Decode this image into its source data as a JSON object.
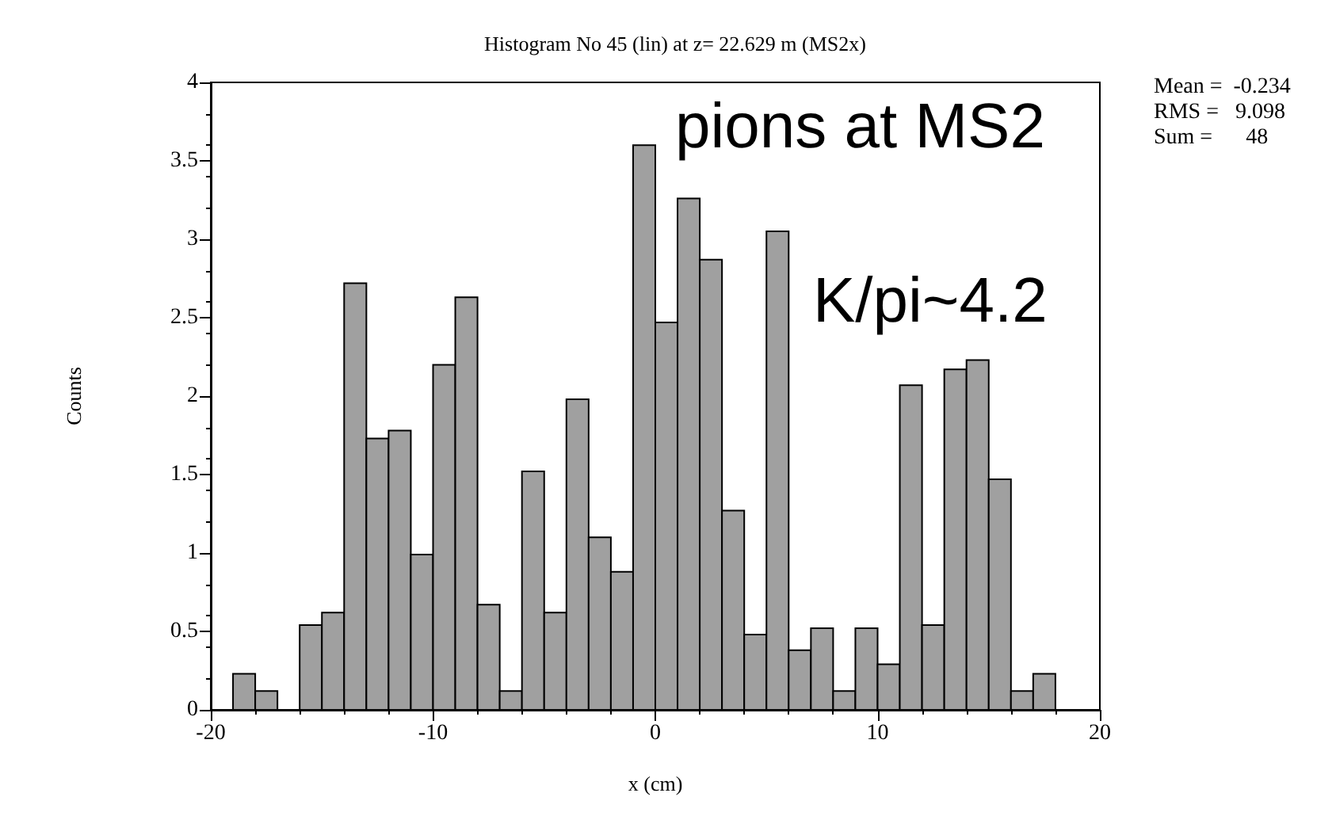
{
  "chart_data": {
    "type": "histogram",
    "title": "Histogram No 45 (lin) at z= 22.629 m (MS2x)",
    "xlabel": "x (cm)",
    "ylabel": "Counts",
    "bins": [
      -19,
      -18,
      -17,
      -16,
      -15,
      -14,
      -13,
      -12,
      -11,
      -10,
      -9,
      -8,
      -7,
      -6,
      -5,
      -4,
      -3,
      -2,
      -1,
      0,
      1,
      2,
      3,
      4,
      5,
      6,
      7,
      8,
      9,
      10,
      11,
      12,
      13,
      14,
      15,
      16,
      17,
      18
    ],
    "values": [
      0.23,
      0.12,
      0,
      0.54,
      0.62,
      2.72,
      1.73,
      1.78,
      0.99,
      2.2,
      2.63,
      0.67,
      0.12,
      1.52,
      0.62,
      1.98,
      1.1,
      0.88,
      3.6,
      2.47,
      3.26,
      2.87,
      1.27,
      0.48,
      3.05,
      0.38,
      0.52,
      0.12,
      0.52,
      0.29,
      2.07,
      0.54,
      2.17,
      2.23,
      1.47,
      0.12,
      0.23
    ],
    "color": "#a0a0a0",
    "xlim": [
      -20,
      20
    ],
    "xticks": [
      -20,
      -10,
      0,
      10,
      20
    ],
    "ylim": [
      0,
      4
    ],
    "yticks": [
      0,
      0.5,
      1,
      1.5,
      2,
      2.5,
      3,
      3.5,
      4
    ],
    "grid": false,
    "annotations": [
      "pions at MS2",
      "K/pi~4.2",
      "Mean =  -0.234",
      "RMS =   9.098",
      "Sum =      48"
    ]
  }
}
